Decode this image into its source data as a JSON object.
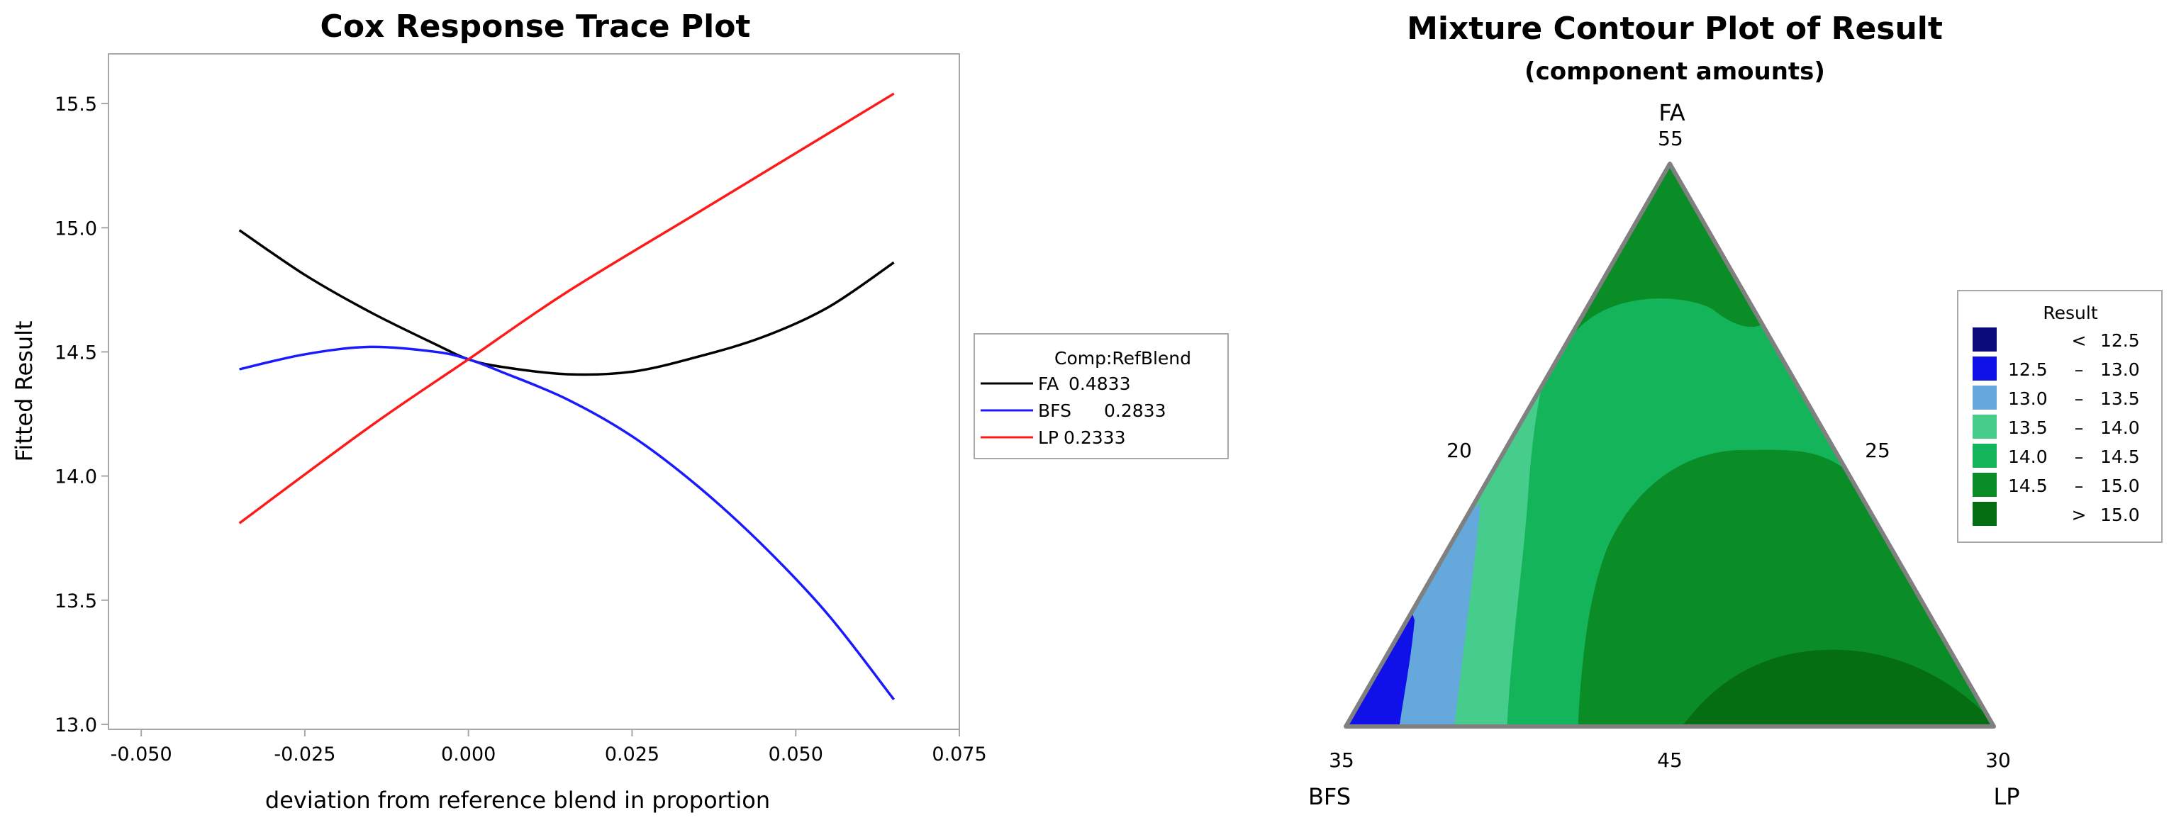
{
  "chart_data": [
    {
      "type": "line",
      "title": "Cox Response Trace Plot",
      "xlabel": "deviation from reference blend in proportion",
      "ylabel": "Fitted Result",
      "xlim": [
        -0.055,
        0.075
      ],
      "ylim": [
        12.98,
        15.7
      ],
      "x_ticks": [
        "-0.050",
        "-0.025",
        "0.000",
        "0.025",
        "0.050",
        "0.075"
      ],
      "y_ticks": [
        "13.0",
        "13.5",
        "14.0",
        "14.5",
        "15.0",
        "15.5"
      ],
      "legend": {
        "title": "Comp:RefBlend",
        "placement": "right, outside plot",
        "entries": [
          {
            "name": "FA",
            "value": "0.4833",
            "color": "#000000"
          },
          {
            "name": "BFS",
            "value": "0.2833",
            "color": "#1a1aff"
          },
          {
            "name": "LP",
            "value": "0.2333",
            "color": "#ff1a1a"
          }
        ]
      },
      "series": [
        {
          "name": "FA",
          "color": "#000000",
          "x": [
            -0.035,
            -0.025,
            -0.015,
            -0.005,
            0.0,
            0.005,
            0.015,
            0.025,
            0.035,
            0.045,
            0.055,
            0.065
          ],
          "y": [
            14.99,
            14.81,
            14.66,
            14.53,
            14.47,
            14.44,
            14.41,
            14.42,
            14.48,
            14.56,
            14.68,
            14.86
          ]
        },
        {
          "name": "BFS",
          "color": "#1a1aff",
          "x": [
            -0.035,
            -0.025,
            -0.015,
            -0.005,
            0.0,
            0.005,
            0.015,
            0.025,
            0.035,
            0.045,
            0.055,
            0.065
          ],
          "y": [
            14.43,
            14.49,
            14.52,
            14.5,
            14.47,
            14.42,
            14.31,
            14.16,
            13.96,
            13.72,
            13.44,
            13.1
          ]
        },
        {
          "name": "LP",
          "color": "#ff1a1a",
          "x": [
            -0.035,
            -0.015,
            0.0,
            0.015,
            0.035,
            0.05,
            0.065
          ],
          "y": [
            13.81,
            14.2,
            14.47,
            14.74,
            15.06,
            15.3,
            15.54
          ]
        }
      ]
    },
    {
      "type": "heatmap",
      "title": "Mixture Contour Plot of Result",
      "subtitle": "(component amounts)",
      "vertices": {
        "top": "FA",
        "left": "BFS",
        "right": "LP"
      },
      "vertex_values": {
        "top": "55",
        "left": "35",
        "right": "30"
      },
      "edge_values": {
        "left_edge": "20",
        "right_edge": "25",
        "bottom_edge": "45"
      },
      "legend": {
        "title": "Result",
        "placement": "right",
        "entries": [
          {
            "lo": "<",
            "hi": "12.5",
            "color": "#0a0a78"
          },
          {
            "lo": "12.5",
            "hi": "13.0",
            "color": "#1010e8"
          },
          {
            "lo": "13.0",
            "hi": "13.5",
            "color": "#64a8dc"
          },
          {
            "lo": "13.5",
            "hi": "14.0",
            "color": "#46cd8c"
          },
          {
            "lo": "14.0",
            "hi": "14.5",
            "color": "#14b45a"
          },
          {
            "lo": "14.5",
            "hi": "15.0",
            "color": "#0a8c26"
          },
          {
            "lo": ">",
            "hi": "15.0",
            "color": "#056e12"
          }
        ]
      }
    }
  ]
}
